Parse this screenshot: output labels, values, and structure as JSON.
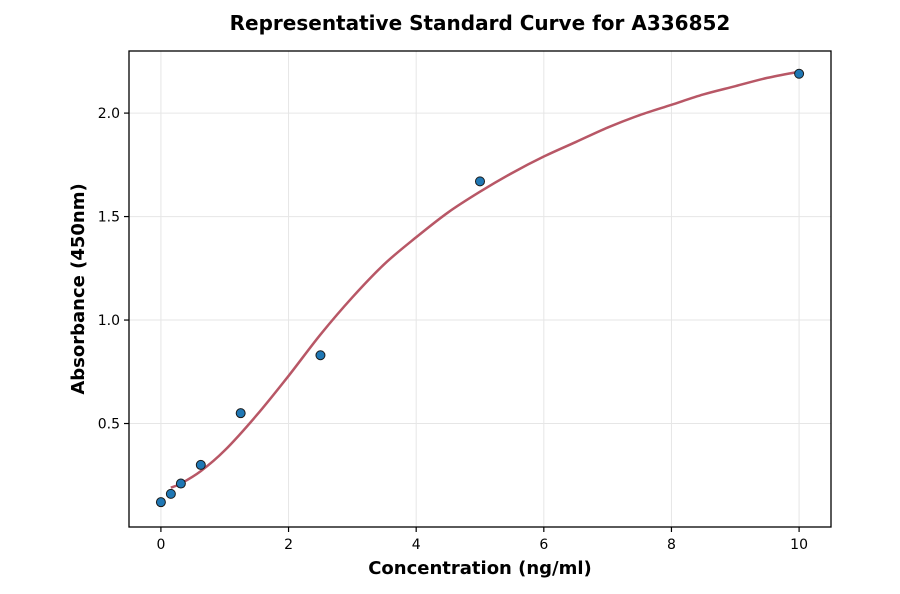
{
  "chart_data": {
    "type": "scatter",
    "title": "Representative Standard Curve for A336852",
    "xlabel": "Concentration (ng/ml)",
    "ylabel": "Absorbance (450nm)",
    "xlim": [
      -0.5,
      10.5
    ],
    "ylim": [
      0.0,
      2.3
    ],
    "x_ticks": [
      0,
      2,
      4,
      6,
      8,
      10
    ],
    "x_tick_labels": [
      "0",
      "2",
      "4",
      "6",
      "8",
      "10"
    ],
    "y_ticks": [
      0.5,
      1.0,
      1.5,
      2.0
    ],
    "y_tick_labels": [
      "0.5",
      "1.0",
      "1.5",
      "2.0"
    ],
    "grid": true,
    "series": [
      {
        "kind": "points",
        "x": [
          0,
          0.156,
          0.313,
          0.625,
          1.25,
          2.5,
          5,
          10
        ],
        "y": [
          0.12,
          0.16,
          0.21,
          0.3,
          0.55,
          0.83,
          1.67,
          2.19
        ],
        "color": "#1f77b4"
      },
      {
        "kind": "fit-curve",
        "x": [
          0.156,
          0.313,
          0.625,
          1.0,
          1.5,
          2.0,
          2.5,
          3.0,
          3.5,
          4.0,
          4.5,
          5.0,
          5.5,
          6.0,
          6.5,
          7.0,
          7.5,
          8.0,
          8.5,
          9.0,
          9.5,
          10.0
        ],
        "y": [
          0.19,
          0.21,
          0.27,
          0.37,
          0.54,
          0.73,
          0.93,
          1.11,
          1.27,
          1.4,
          1.52,
          1.62,
          1.71,
          1.79,
          1.86,
          1.93,
          1.99,
          2.04,
          2.09,
          2.13,
          2.17,
          2.2
        ],
        "color": "#b85766"
      }
    ]
  }
}
